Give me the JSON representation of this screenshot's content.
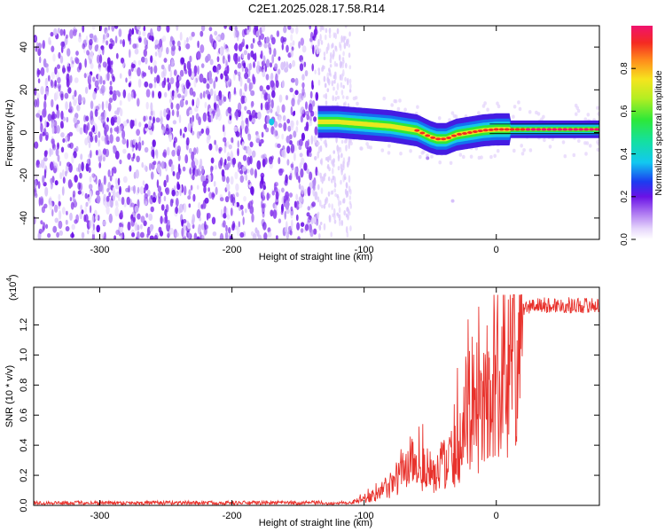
{
  "title": "C2E1.2025.028.17.58.R14",
  "chart_data": [
    {
      "type": "heatmap",
      "xlabel": "Height of straight line (km)",
      "ylabel": "Frequency (Hz)",
      "xlim": [
        -350,
        78
      ],
      "ylim": [
        -50,
        50
      ],
      "xticks": [
        -300,
        -200,
        -100,
        0
      ],
      "yticks": [
        -40,
        -20,
        0,
        20,
        40
      ],
      "colorbar": {
        "label": "Normalized spectral amplitude",
        "ticks": [
          "0.0",
          "0.2",
          "0.4",
          "0.6",
          "0.8"
        ],
        "range": [
          0,
          1
        ]
      },
      "ridge_frequency": {
        "x": [
          -135,
          -120,
          -100,
          -80,
          -60,
          -50,
          -45,
          -38,
          -30,
          -20,
          -10,
          0,
          20,
          50,
          78
        ],
        "y": [
          5,
          5,
          4,
          3,
          1,
          -2,
          -3,
          -3,
          -1,
          0,
          1,
          1.5,
          1.5,
          1.5,
          1.5
        ]
      },
      "noise_region_end_x": -135
    },
    {
      "type": "line",
      "xlabel": "Height of straight line (km)",
      "ylabel": "SNR (10 * v/v)",
      "scale_note": "(x10",
      "scale_exponent": "4",
      "xlim": [
        -350,
        78
      ],
      "ylim": [
        0,
        14500
      ],
      "xticks": [
        -300,
        -200,
        -100,
        0
      ],
      "ytick_labels": [
        "0.0",
        "0.2",
        "0.4",
        "0.6",
        "0.8",
        "1.0",
        "1.2"
      ],
      "ytick_values": [
        0,
        2000,
        4000,
        6000,
        8000,
        10000,
        12000
      ],
      "series_color": "#e8322c",
      "envelope": {
        "x": [
          -350,
          -130,
          -120,
          -110,
          -100,
          -90,
          -80,
          -70,
          -65,
          -60,
          -50,
          -45,
          -40,
          -35,
          -30,
          -25,
          -20,
          -15,
          -10,
          -5,
          0,
          5,
          10,
          15,
          20,
          25,
          30,
          40,
          50,
          60,
          78
        ],
        "y": [
          150,
          150,
          200,
          300,
          500,
          1000,
          1800,
          3000,
          4200,
          3500,
          3000,
          2000,
          4500,
          3800,
          5000,
          7000,
          8500,
          8000,
          9200,
          10000,
          10500,
          11000,
          12000,
          12500,
          13000,
          13200,
          13300,
          13300,
          13300,
          13300,
          13300
        ]
      }
    }
  ]
}
